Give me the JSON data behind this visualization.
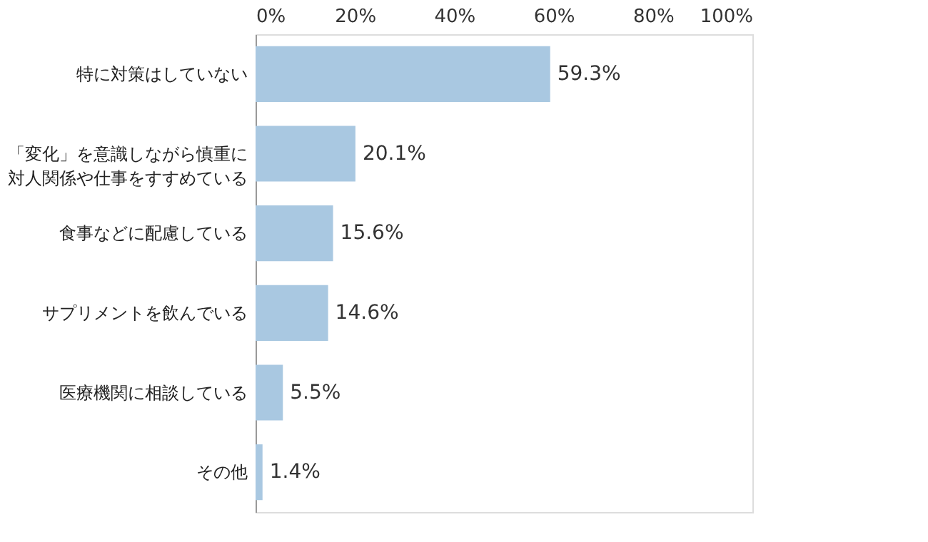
{
  "chart_data": {
    "type": "bar",
    "orientation": "horizontal",
    "categories": [
      "特に対策はしていない",
      "「変化」を意識しながら慎重に対人関係や仕事をすすめている",
      "食事などに配慮している",
      "サプリメントを飲んでいる",
      "医療機関に相談している",
      "その他"
    ],
    "values": [
      59.3,
      20.1,
      15.6,
      14.6,
      5.5,
      1.4
    ],
    "value_labels": [
      "59.3%",
      "20.1%",
      "15.6%",
      "14.6%",
      "5.5%",
      "1.4%"
    ],
    "color": "#a9c8e1",
    "xlim": [
      0,
      100
    ],
    "xticks": [
      {
        "value": 0,
        "label": "0%"
      },
      {
        "value": 20,
        "label": "20%"
      },
      {
        "value": 40,
        "label": "40%"
      },
      {
        "value": 60,
        "label": "60%"
      },
      {
        "value": 80,
        "label": "80%"
      },
      {
        "value": 100,
        "label": "100%"
      }
    ],
    "grid": false
  }
}
